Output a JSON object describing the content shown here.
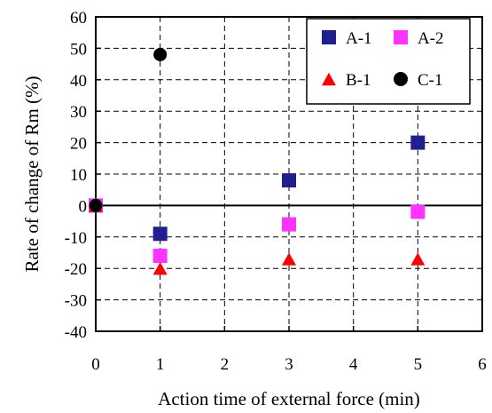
{
  "chart_data": {
    "type": "scatter",
    "xlabel": "Action time of external force (min)",
    "ylabel": "Rate of change of Rm (%)",
    "xlim": [
      0,
      6
    ],
    "ylim": [
      -40,
      60
    ],
    "xticks": [
      0,
      1,
      2,
      3,
      4,
      5,
      6
    ],
    "yticks": [
      -40,
      -30,
      -20,
      -10,
      0,
      10,
      20,
      30,
      40,
      50,
      60
    ],
    "grid": "dashed",
    "legend_position": "top-right",
    "series": [
      {
        "name": "A-1",
        "marker": "square",
        "color": "#1f1f8f",
        "x": [
          0,
          1,
          3,
          5
        ],
        "y": [
          0,
          -9,
          8,
          20
        ]
      },
      {
        "name": "A-2",
        "marker": "square",
        "color": "#ff33ff",
        "x": [
          0,
          1,
          3,
          5
        ],
        "y": [
          0,
          -16,
          -6,
          -2
        ]
      },
      {
        "name": "B-1",
        "marker": "triangle",
        "color": "#ff0000",
        "x": [
          0,
          1,
          3,
          5
        ],
        "y": [
          0,
          -20,
          -17,
          -17
        ]
      },
      {
        "name": "C-1",
        "marker": "circle",
        "color": "#000000",
        "x": [
          0,
          1
        ],
        "y": [
          0,
          48
        ]
      }
    ]
  }
}
